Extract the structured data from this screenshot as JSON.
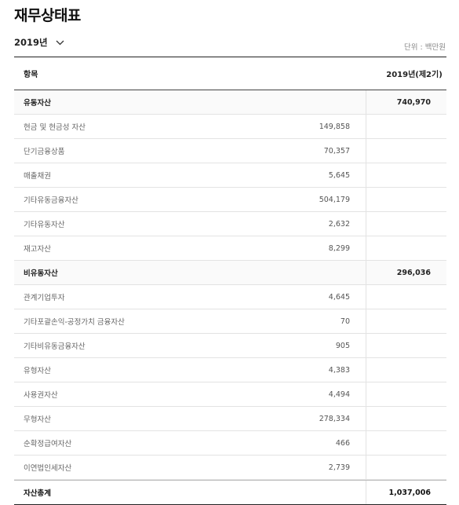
{
  "page": {
    "title": "재무상태표",
    "unit_label": "단위 : 백만원"
  },
  "period_select": {
    "selected": "2019년"
  },
  "table": {
    "headers": {
      "item": "항목",
      "period": "2019년(제2기)"
    },
    "rows": [
      {
        "label": "유동자산",
        "detail": "",
        "total": "740,970",
        "kind": "group"
      },
      {
        "label": "현금 및 현금성 자산",
        "detail": "149,858",
        "total": "",
        "kind": "item"
      },
      {
        "label": "단기금융상품",
        "detail": "70,357",
        "total": "",
        "kind": "item"
      },
      {
        "label": "매출채권",
        "detail": "5,645",
        "total": "",
        "kind": "item"
      },
      {
        "label": "기타유동금융자산",
        "detail": "504,179",
        "total": "",
        "kind": "item"
      },
      {
        "label": "기타유동자산",
        "detail": "2,632",
        "total": "",
        "kind": "item"
      },
      {
        "label": "재고자산",
        "detail": "8,299",
        "total": "",
        "kind": "item"
      },
      {
        "label": "비유동자산",
        "detail": "",
        "total": "296,036",
        "kind": "group"
      },
      {
        "label": "관계기업투자",
        "detail": "4,645",
        "total": "",
        "kind": "item"
      },
      {
        "label": "기타포괄손익-공정가치 금융자산",
        "detail": "70",
        "total": "",
        "kind": "item"
      },
      {
        "label": "기타비유동금융자산",
        "detail": "905",
        "total": "",
        "kind": "item"
      },
      {
        "label": "유형자산",
        "detail": "4,383",
        "total": "",
        "kind": "item"
      },
      {
        "label": "사용권자산",
        "detail": "4,494",
        "total": "",
        "kind": "item"
      },
      {
        "label": "무형자산",
        "detail": "278,334",
        "total": "",
        "kind": "item"
      },
      {
        "label": "순확정급여자산",
        "detail": "466",
        "total": "",
        "kind": "item"
      },
      {
        "label": "이연법인세자산",
        "detail": "2,739",
        "total": "",
        "kind": "item"
      },
      {
        "label": "자산총계",
        "detail": "",
        "total": "1,037,006",
        "kind": "total"
      }
    ]
  }
}
